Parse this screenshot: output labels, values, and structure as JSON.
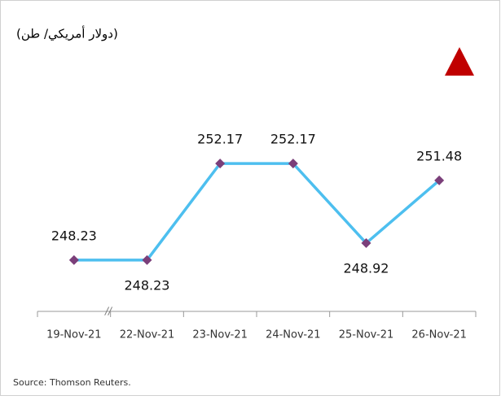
{
  "chart_data": {
    "type": "line",
    "title": "(دولار أمريكي/ طن)",
    "source": "Source: Thomson Reuters.",
    "categories": [
      "19-Nov-21",
      "22-Nov-21",
      "23-Nov-21",
      "24-Nov-21",
      "25-Nov-21",
      "26-Nov-21"
    ],
    "series": [
      {
        "color": "#4dbfef",
        "values": [
          248.23,
          248.23,
          252.17,
          252.17,
          248.92,
          251.48
        ]
      }
    ],
    "ylim": [
      246,
      254
    ],
    "marker_color": "#7b3f7a"
  }
}
